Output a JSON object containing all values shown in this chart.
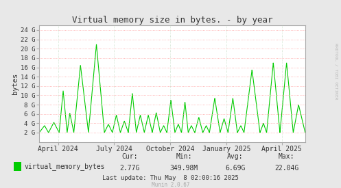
{
  "title": "Virtual memory size in bytes. - by year",
  "ylabel": "bytes",
  "background_color": "#e8e8e8",
  "plot_bg_color": "#ffffff",
  "line_color": "#00cc00",
  "grid_color_h": "#ff9999",
  "grid_color_v": "#aaccaa",
  "ytick_labels": [
    "2 G",
    "4 G",
    "6 G",
    "8 G",
    "10 G",
    "12 G",
    "14 G",
    "16 G",
    "18 G",
    "20 G",
    "22 G",
    "24 G"
  ],
  "ytick_values": [
    2000000000.0,
    4000000000.0,
    6000000000.0,
    8000000000.0,
    10000000000.0,
    12000000000.0,
    14000000000.0,
    16000000000.0,
    18000000000.0,
    20000000000.0,
    22000000000.0,
    24000000000.0
  ],
  "ymax": 25000000000.0,
  "ymin": 0,
  "legend_label": "virtual_memory_bytes",
  "legend_color": "#00cc00",
  "stats_cur": "2.77G",
  "stats_min": "349.98M",
  "stats_avg": "6.69G",
  "stats_max": "22.04G",
  "last_update": "Last update: Thu May  8 02:00:16 2025",
  "munin_version": "Munin 2.0.67",
  "watermark": "RRDTOOL / TOBI OETIKER",
  "font_color": "#333333",
  "axis_color": "#aaaaaa",
  "xtick_labels": [
    "April 2024",
    "July 2024",
    "October 2024",
    "January 2025",
    "April 2025"
  ],
  "xtick_positions": [
    1711929600,
    1719792000,
    1727740800,
    1735689600,
    1743465600
  ],
  "xmin": 1709251200,
  "xmax": 1746748800,
  "cycles": [
    [
      0.0,
      0.02,
      0.035,
      3500000000.0,
      2000000000.0
    ],
    [
      0.035,
      0.055,
      0.075,
      4200000000.0,
      2000000000.0
    ],
    [
      0.075,
      0.09,
      0.105,
      11000000000.0,
      2000000000.0
    ],
    [
      0.105,
      0.115,
      0.13,
      6200000000.0,
      2000000000.0
    ],
    [
      0.13,
      0.155,
      0.185,
      16500000000.0,
      2000000000.0
    ],
    [
      0.185,
      0.215,
      0.245,
      21000000000.0,
      2000000000.0
    ],
    [
      0.245,
      0.26,
      0.275,
      3800000000.0,
      2000000000.0
    ],
    [
      0.275,
      0.29,
      0.305,
      5800000000.0,
      2000000000.0
    ],
    [
      0.305,
      0.32,
      0.335,
      4500000000.0,
      2000000000.0
    ],
    [
      0.335,
      0.35,
      0.365,
      10500000000.0,
      2000000000.0
    ],
    [
      0.365,
      0.38,
      0.395,
      5800000000.0,
      2000000000.0
    ],
    [
      0.395,
      0.41,
      0.425,
      5800000000.0,
      2000000000.0
    ],
    [
      0.425,
      0.44,
      0.455,
      6300000000.0,
      2000000000.0
    ],
    [
      0.455,
      0.468,
      0.48,
      3500000000.0,
      2000000000.0
    ],
    [
      0.48,
      0.495,
      0.51,
      9000000000.0,
      2000000000.0
    ],
    [
      0.51,
      0.523,
      0.535,
      3800000000.0,
      2000000000.0
    ],
    [
      0.535,
      0.548,
      0.56,
      8600000000.0,
      2000000000.0
    ],
    [
      0.56,
      0.572,
      0.585,
      3500000000.0,
      2000000000.0
    ],
    [
      0.585,
      0.6,
      0.615,
      5300000000.0,
      2000000000.0
    ],
    [
      0.615,
      0.628,
      0.64,
      3500000000.0,
      2000000000.0
    ],
    [
      0.64,
      0.66,
      0.68,
      9400000000.0,
      2000000000.0
    ],
    [
      0.68,
      0.695,
      0.71,
      5000000000.0,
      2000000000.0
    ],
    [
      0.71,
      0.728,
      0.745,
      9400000000.0,
      2000000000.0
    ],
    [
      0.745,
      0.758,
      0.77,
      3500000000.0,
      2000000000.0
    ],
    [
      0.77,
      0.8,
      0.83,
      15500000000.0,
      2000000000.0
    ],
    [
      0.83,
      0.843,
      0.855,
      4000000000.0,
      2000000000.0
    ],
    [
      0.855,
      0.88,
      0.905,
      17000000000.0,
      2000000000.0
    ],
    [
      0.905,
      0.93,
      0.955,
      17000000000.0,
      2000000000.0
    ],
    [
      0.955,
      0.975,
      1.0,
      8000000000.0,
      2000000000.0
    ]
  ]
}
